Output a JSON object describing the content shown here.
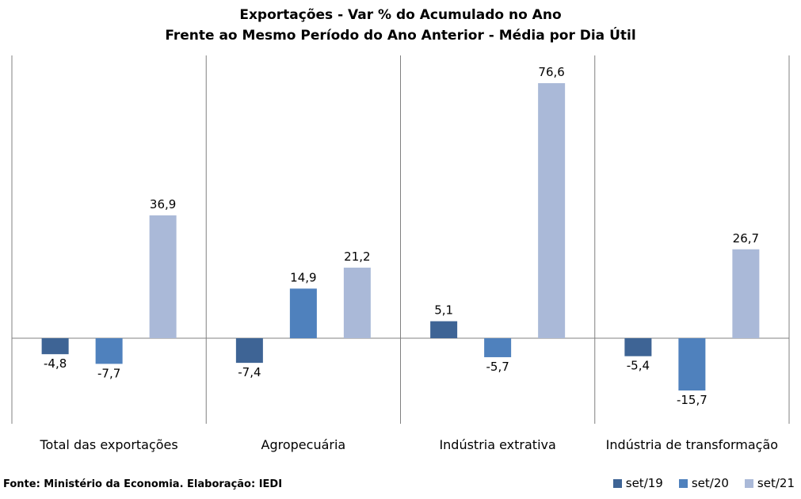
{
  "chart_data": {
    "type": "bar",
    "title_line1": "Exportações - Var % do Acumulado no Ano",
    "title_line2": "Frente ao Mesmo Período do Ano Anterior - Média por Dia Útil",
    "categories": [
      "Total das exportações",
      "Agropecuária",
      "Indústria extrativa",
      "Indústria de transformação"
    ],
    "series": [
      {
        "name": "set/19",
        "color": "#3e6495",
        "values": [
          -4.8,
          -7.4,
          5.1,
          -5.4
        ],
        "labels": [
          "-4,8",
          "-7,4",
          "5,1",
          "-5,4"
        ]
      },
      {
        "name": "set/20",
        "color": "#4f81bd",
        "values": [
          -7.7,
          14.9,
          -5.7,
          -15.7
        ],
        "labels": [
          "-7,7",
          "14,9",
          "-5,7",
          "-15,7"
        ]
      },
      {
        "name": "set/21",
        "color": "#aab9d8",
        "values": [
          36.9,
          21.2,
          76.6,
          26.7
        ],
        "labels": [
          "36,9",
          "21,2",
          "76,6",
          "26,7"
        ]
      }
    ],
    "grid": false,
    "legend_position": "bottom-right"
  },
  "source": "Fonte: Ministério da Economia. Elaboração: IEDI"
}
